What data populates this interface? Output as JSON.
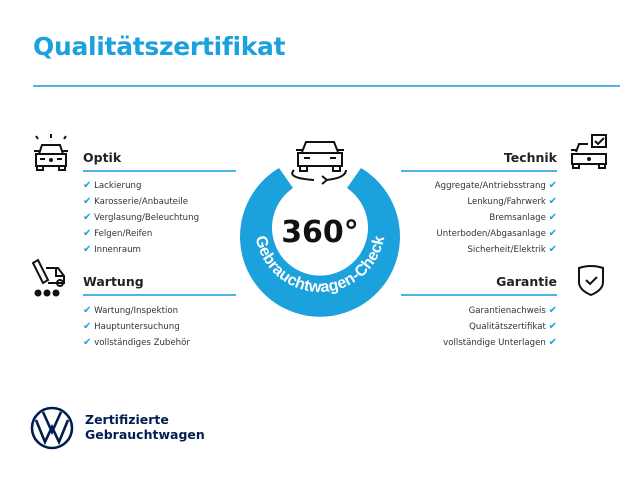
{
  "title": "Qualitätszertifikat",
  "colors": {
    "accent": "#1ba1db",
    "brand": "#001e50"
  },
  "center": {
    "value": "360°",
    "arc_text": "Gebrauchtwagen-Check",
    "icon": "car-rotate-icon"
  },
  "sections": {
    "optik": {
      "heading": "Optik",
      "icon": "car-lights-icon",
      "items": [
        "Lackierung",
        "Karosserie/Anbauteile",
        "Verglasung/Beleuchtung",
        "Felgen/Reifen",
        "Innenraum"
      ]
    },
    "wartung": {
      "heading": "Wartung",
      "icon": "service-tools-icon",
      "items": [
        "Wartung/Inspektion",
        "Hauptuntersuchung",
        "vollständiges Zubehör"
      ]
    },
    "technik": {
      "heading": "Technik",
      "icon": "car-checkbox-icon",
      "items": [
        "Aggregate/Antriebsstrang",
        "Lenkung/Fahrwerk",
        "Bremsanlage",
        "Unterboden/Abgasanlage",
        "Sicherheit/Elektrik"
      ]
    },
    "garantie": {
      "heading": "Garantie",
      "icon": "shield-check-icon",
      "items": [
        "Garantienachweis",
        "Qualitätszertifikat",
        "vollständige Unterlagen"
      ]
    }
  },
  "check": "✔",
  "footer": {
    "line1": "Zertifizierte",
    "line2": "Gebrauchtwagen"
  }
}
